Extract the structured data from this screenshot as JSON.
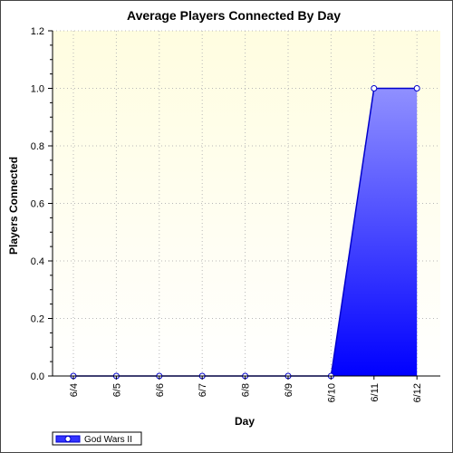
{
  "chart_data": {
    "type": "area",
    "title": "Average Players Connected By Day",
    "xlabel": "Day",
    "ylabel": "Players Connected",
    "categories": [
      "6/4",
      "6/5",
      "6/6",
      "6/7",
      "6/8",
      "6/9",
      "6/10",
      "6/11",
      "6/12"
    ],
    "series": [
      {
        "name": "God Wars II",
        "values": [
          0,
          0,
          0,
          0,
          0,
          0,
          0,
          1.0,
          1.0
        ]
      }
    ],
    "ylim": [
      0,
      1.2
    ],
    "yticks": [
      "0.0",
      "0.2",
      "0.4",
      "0.6",
      "0.8",
      "1.0",
      "1.2"
    ],
    "grid": true,
    "legend_position": "bottom-left",
    "colors": {
      "plot_bg_top": "#fffde0",
      "plot_bg_bottom": "#ffffff",
      "area_top": "#9090ff",
      "area_bottom": "#0000ff",
      "line": "#0000cc",
      "marker_fill": "#ffffff",
      "grid": "#b8b8b8"
    }
  }
}
